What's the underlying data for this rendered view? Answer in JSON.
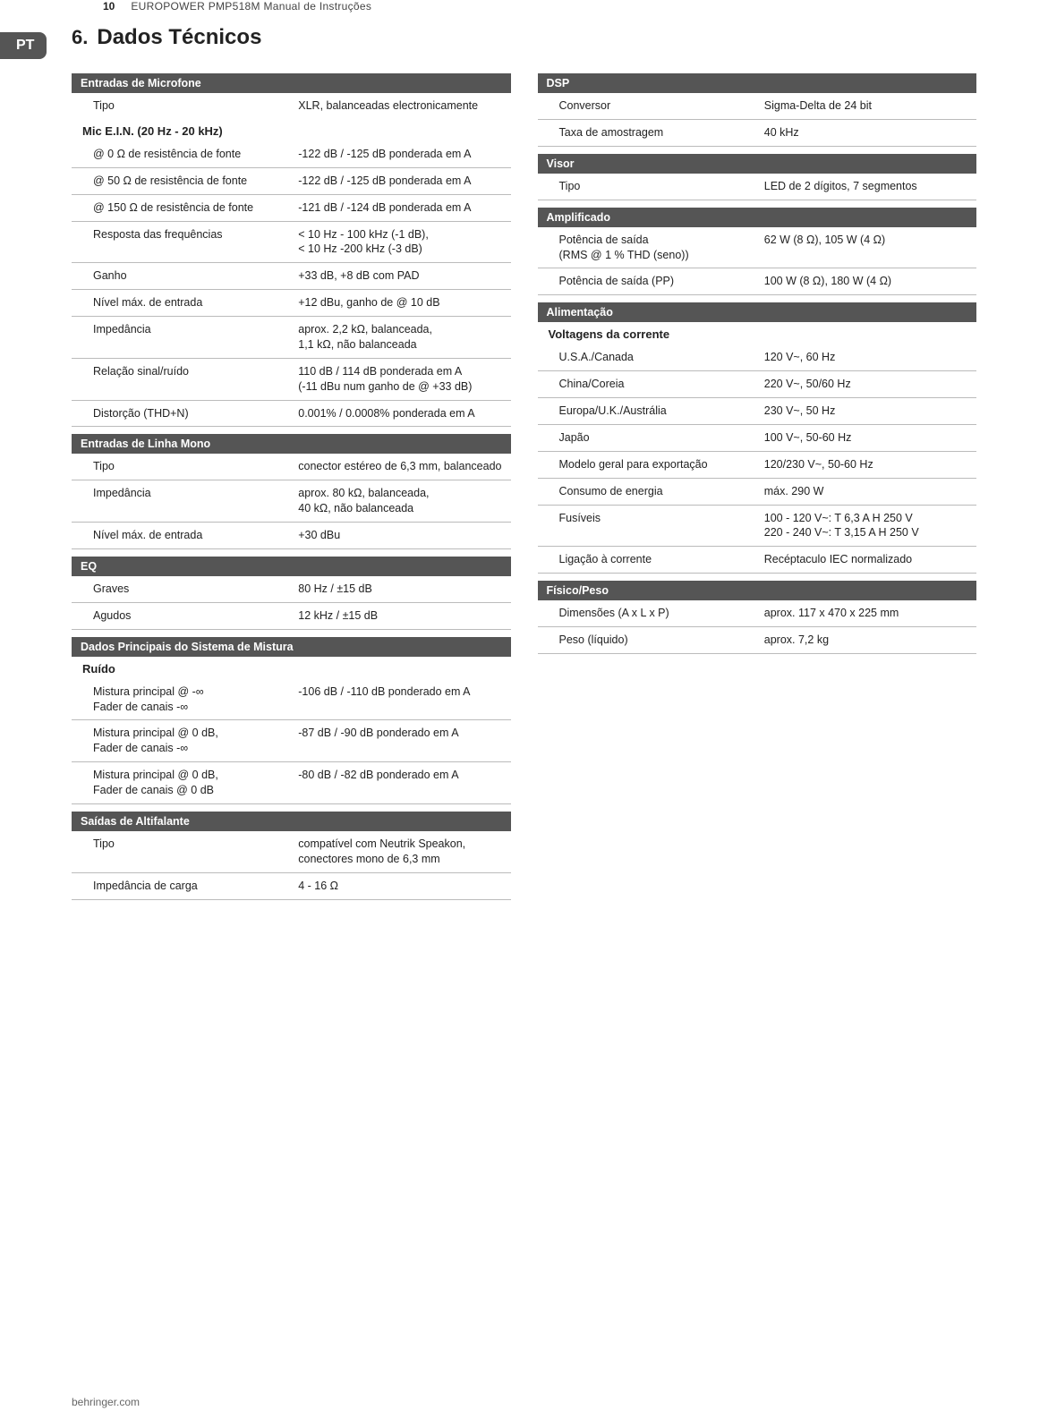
{
  "header": {
    "page_number": "10",
    "manual_title": "EUROPOWER PMP518M Manual de Instruções",
    "lang_badge": "PT"
  },
  "h1": {
    "num": "6.",
    "title": "Dados Técnicos"
  },
  "left_sections": [
    {
      "header": "Entradas de Microfone",
      "rows": [
        {
          "label": "Tipo",
          "value": "XLR, balanceadas electronicamente",
          "no_border": true
        }
      ],
      "subsections": [
        {
          "subheader": "Mic E.I.N. (20 Hz - 20 kHz)",
          "rows": [
            {
              "label": "@ 0 Ω de resistência de fonte",
              "value": "-122 dB / -125 dB ponderada em A"
            },
            {
              "label": "@ 50 Ω de resistência de fonte",
              "value": "-122 dB / -125 dB ponderada em A"
            },
            {
              "label": "@ 150 Ω de resistência de fonte",
              "value": "-121 dB / -124 dB ponderada em A"
            },
            {
              "label": "Resposta das frequências",
              "value": "< 10 Hz - 100 kHz (-1 dB),\n< 10 Hz -200 kHz (-3 dB)"
            },
            {
              "label": "Ganho",
              "value": "+33 dB, +8 dB com PAD"
            },
            {
              "label": "Nível máx. de entrada",
              "value": "+12 dBu, ganho de @ 10 dB"
            },
            {
              "label": "Impedância",
              "value": "aprox. 2,2 kΩ, balanceada,\n1,1 kΩ, não balanceada"
            },
            {
              "label": "Relação sinal/ruído",
              "value": "110 dB / 114 dB ponderada em A\n(-11 dBu num ganho de @ +33 dB)"
            },
            {
              "label": "Distorção (THD+N)",
              "value": "0.001% / 0.0008% ponderada em A"
            }
          ]
        }
      ]
    },
    {
      "header": "Entradas de Linha Mono",
      "rows": [
        {
          "label": "Tipo",
          "value": "conector estéreo de 6,3 mm, balanceado"
        },
        {
          "label": "Impedância",
          "value": "aprox. 80 kΩ, balanceada,\n40 kΩ, não balanceada"
        },
        {
          "label": "Nível máx. de entrada",
          "value": "+30 dBu"
        }
      ]
    },
    {
      "header": "EQ",
      "rows": [
        {
          "label": "Graves",
          "value": "80 Hz / ±15 dB"
        },
        {
          "label": "Agudos",
          "value": "12 kHz / ±15 dB"
        }
      ]
    },
    {
      "header": "Dados Principais do Sistema de Mistura",
      "subsections": [
        {
          "subheader": "Ruído",
          "rows": [
            {
              "label": "Mistura principal @ -∞\nFader de canais -∞",
              "value": "-106 dB / -110 dB ponderado em A"
            },
            {
              "label": "Mistura principal @ 0 dB,\nFader de canais -∞",
              "value": "-87 dB / -90 dB ponderado em A"
            },
            {
              "label": "Mistura principal @ 0 dB,\nFader de canais @ 0 dB",
              "value": "-80 dB / -82 dB ponderado em A"
            }
          ]
        }
      ]
    },
    {
      "header": "Saídas de Altifalante",
      "rows": [
        {
          "label": "Tipo",
          "value": "compatível com Neutrik Speakon, conectores mono de 6,3 mm"
        },
        {
          "label": "Impedância de carga",
          "value": "4 - 16 Ω"
        }
      ]
    }
  ],
  "right_sections": [
    {
      "header": "DSP",
      "rows": [
        {
          "label": "Conversor",
          "value": "Sigma-Delta de 24 bit"
        },
        {
          "label": "Taxa de amostragem",
          "value": "40 kHz"
        }
      ]
    },
    {
      "header": "Visor",
      "rows": [
        {
          "label": "Tipo",
          "value": "LED de 2 dígitos, 7 segmentos"
        }
      ]
    },
    {
      "header": "Amplificado",
      "rows": [
        {
          "label": "Potência de saída\n(RMS @ 1 % THD (seno))",
          "value": "62 W (8 Ω), 105 W (4 Ω)"
        },
        {
          "label": "Potência de saída (PP)",
          "value": "100 W (8 Ω), 180 W (4 Ω)"
        }
      ]
    },
    {
      "header": "Alimentação",
      "subsections": [
        {
          "subheader": "Voltagens da corrente",
          "rows": [
            {
              "label": "U.S.A./Canada",
              "value": "120 V~, 60 Hz"
            },
            {
              "label": "China/Coreia",
              "value": "220 V~, 50/60 Hz"
            },
            {
              "label": "Europa/U.K./Austrália",
              "value": "230 V~, 50 Hz"
            },
            {
              "label": "Japão",
              "value": "100 V~, 50-60 Hz"
            },
            {
              "label": "Modelo geral para exportação",
              "value": "120/230 V~, 50-60 Hz"
            },
            {
              "label": "Consumo de energia",
              "value": "máx. 290 W"
            },
            {
              "label": "Fusíveis",
              "value": "100 - 120 V~: T 6,3 A H 250 V\n220 - 240 V~: T 3,15 A H 250 V"
            },
            {
              "label": "Ligação à corrente",
              "value": "Recéptaculo IEC normalizado"
            }
          ]
        }
      ]
    },
    {
      "header": "Físico/Peso",
      "rows": [
        {
          "label": "Dimensões (A x L x P)",
          "value": "aprox. 117 x 470 x 225 mm"
        },
        {
          "label": "Peso (líquido)",
          "value": "aprox. 7,2 kg"
        }
      ]
    }
  ],
  "footer": "behringer.com",
  "colors": {
    "section_bg": "#555555",
    "section_fg": "#ffffff",
    "row_border": "#bbbbbb",
    "text": "#222222",
    "footer_text": "#666666",
    "badge_bg": "#555555"
  }
}
